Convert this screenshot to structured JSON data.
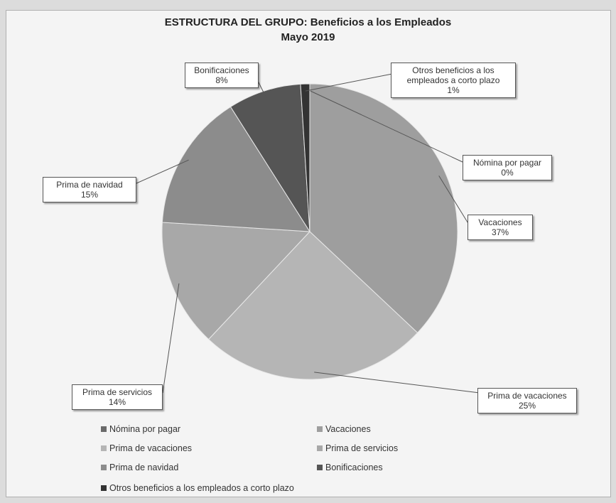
{
  "chart_data": {
    "type": "pie",
    "title": "ESTRUCTURA DEL GRUPO: Beneficios a los Empleados",
    "subtitle": "Mayo 2019",
    "slices": [
      {
        "name": "Nómina por pagar",
        "value": 0,
        "label": "Nómina por pagar",
        "pct_label": "0%",
        "color": "#6a6a6a"
      },
      {
        "name": "Vacaciones",
        "value": 37,
        "label": "Vacaciones",
        "pct_label": "37%",
        "color": "#9e9e9e"
      },
      {
        "name": "Prima de vacaciones",
        "value": 25,
        "label": "Prima de vacaciones",
        "pct_label": "25%",
        "color": "#b5b5b5"
      },
      {
        "name": "Prima de servicios",
        "value": 14,
        "label": "Prima de servicios",
        "pct_label": "14%",
        "color": "#a8a8a8"
      },
      {
        "name": "Prima de navidad",
        "value": 15,
        "label": "Prima de navidad",
        "pct_label": "15%",
        "color": "#8c8c8c"
      },
      {
        "name": "Bonificaciones",
        "value": 8,
        "label": "Bonificaciones",
        "pct_label": "8%",
        "color": "#555555"
      },
      {
        "name": "Otros beneficios a los empleados a corto plazo",
        "value": 1,
        "label": "Otros beneficios a los empleados a corto plazo",
        "pct_label": "1%",
        "color": "#333333"
      }
    ],
    "legend": [
      "Nómina por pagar",
      "Vacaciones",
      "Prima de vacaciones",
      "Prima de servicios",
      "Prima de navidad",
      "Bonificaciones",
      "Otros beneficios a los empleados a corto plazo"
    ],
    "legend_position": "bottom"
  }
}
